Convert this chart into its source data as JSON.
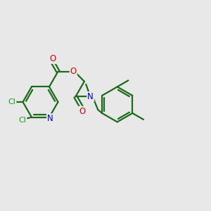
{
  "background_color": "#e8e8e8",
  "bond_color": "#1a6b1a",
  "cl_color": "#1a9b1a",
  "n_color": "#0000cc",
  "o_color": "#cc0000",
  "line_width": 1.6,
  "figsize": [
    3.0,
    3.0
  ],
  "dpi": 100,
  "xlim": [
    0,
    12
  ],
  "ylim": [
    0,
    12
  ]
}
